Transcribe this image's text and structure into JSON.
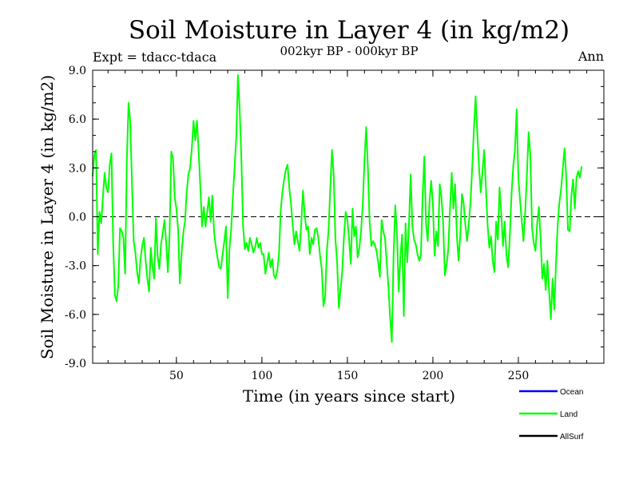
{
  "chart_data": {
    "type": "line",
    "title": "Soil Moisture in Layer 4 (in kg/m2)",
    "subtitle": "002kyr BP - 000kyr BP",
    "experiment": "Expt = tdacc-tdaca",
    "period": "Ann",
    "xlabel": "Time (in years since start)",
    "ylabel": "Soil Moisture in Layer 4 (in kg/m2)",
    "xlim": [
      1,
      300
    ],
    "ylim": [
      -9,
      9
    ],
    "xticks": [
      50,
      100,
      150,
      200,
      250
    ],
    "xtick_labels": [
      "50",
      "100",
      "150",
      "200",
      "250"
    ],
    "yticks": [
      -9,
      -6,
      -3,
      0,
      3,
      6,
      9
    ],
    "ytick_labels": [
      "-9.0",
      "-6.0",
      "-3.0",
      "0.0",
      "3.0",
      "6.0",
      "9.0"
    ],
    "zero_line": "dashed",
    "legend": [
      {
        "name": "Ocean",
        "color": "#0000ff"
      },
      {
        "name": "Land",
        "color": "#00ff00"
      },
      {
        "name": "AllSurf",
        "color": "#000000"
      }
    ],
    "series": [
      {
        "name": "Land",
        "color": "#00ff00",
        "x_start": 1,
        "x_step": 1,
        "values": [
          2.5,
          3.8,
          4.1,
          -2.3,
          0.3,
          -0.4,
          1.2,
          2.7,
          1.8,
          1.5,
          3.2,
          3.9,
          -1.6,
          -4.8,
          -5.2,
          -4.2,
          -0.7,
          -0.9,
          -1.3,
          -3.5,
          3.5,
          7.0,
          5.8,
          2.1,
          -1.5,
          -2.2,
          -3.4,
          -4.1,
          -2.6,
          -1.8,
          -1.3,
          -2.7,
          -3.8,
          -4.6,
          -1.9,
          -3.1,
          -3.8,
          -0.1,
          -2.4,
          -3.2,
          -1.7,
          -1.0,
          -0.2,
          -1.6,
          -3.4,
          -1.1,
          4.0,
          3.6,
          1.2,
          0.5,
          -0.8,
          -4.1,
          -2.3,
          -1.0,
          -0.3,
          1.5,
          2.6,
          3.0,
          4.2,
          5.9,
          4.7,
          5.9,
          4.0,
          1.8,
          -0.6,
          0.6,
          -0.6,
          0.3,
          1.2,
          -0.3,
          1.3,
          -0.9,
          -1.8,
          -2.5,
          -3.1,
          -3.2,
          -2.3,
          -1.5,
          -0.6,
          -5.0,
          -2.0,
          -0.8,
          1.2,
          3.0,
          4.9,
          8.7,
          6.6,
          3.5,
          -0.6,
          -2.0,
          -1.6,
          -2.1,
          -1.3,
          -1.7,
          -2.2,
          -1.9,
          -1.3,
          -1.9,
          -1.6,
          -2.3,
          -2.3,
          -3.5,
          -2.9,
          -2.2,
          -3.1,
          -2.6,
          -3.6,
          -3.8,
          -3.3,
          -2.3,
          0.4,
          1.5,
          2.3,
          2.9,
          3.2,
          1.8,
          0.8,
          -0.5,
          -1.7,
          -0.9,
          -1.5,
          -2.1,
          -0.4,
          1.6,
          0.2,
          -0.8,
          -0.6,
          -2.3,
          -1.3,
          -1.7,
          -0.8,
          -0.7,
          -1.3,
          -2.4,
          -3.2,
          -5.5,
          -4.9,
          -2.1,
          -0.8,
          1.8,
          4.1,
          2.5,
          -1.4,
          -2.8,
          -5.6,
          -4.5,
          -3.3,
          -1.2,
          0.3,
          -0.2,
          -1.4,
          -2.9,
          0.5,
          -1.2,
          -0.6,
          -2.5,
          -1.9,
          -0.9,
          0.8,
          3.5,
          5.5,
          3.0,
          -0.3,
          -1.8,
          -1.5,
          -1.7,
          -2.1,
          -2.8,
          -3.7,
          -0.2,
          -0.9,
          -1.3,
          -2.8,
          -4.3,
          -6.2,
          -7.7,
          -2.4,
          0.7,
          -1.0,
          -4.6,
          -2.5,
          -1.1,
          -6.1,
          -0.4,
          -2.8,
          -0.5,
          2.6,
          -0.6,
          -1.4,
          -1.7,
          -2.3,
          -2.7,
          -2.4,
          1.3,
          3.7,
          -0.5,
          -1.5,
          0.9,
          2.2,
          0.8,
          -2.4,
          -0.9,
          -1.8,
          2.0,
          1.2,
          -0.4,
          -3.6,
          -3.0,
          -2.0,
          0.5,
          2.7,
          0.5,
          2.0,
          -1.1,
          -2.7,
          -1.2,
          1.4,
          0.8,
          -0.5,
          -1.5,
          -0.4,
          0.9,
          3.0,
          5.4,
          7.4,
          5.1,
          3.0,
          1.5,
          2.8,
          4.1,
          1.8,
          -0.5,
          -1.9,
          -1.2,
          -2.7,
          -3.4,
          -0.3,
          -1.4,
          1.8,
          0.2,
          -1.8,
          -0.3,
          -2.3,
          -3.1,
          -1.2,
          1.4,
          3.1,
          4.1,
          6.6,
          2.4,
          1.0,
          -0.3,
          -1.5,
          0.3,
          2.6,
          5.2,
          3.8,
          -0.7,
          -1.6,
          -2.1,
          -0.4,
          0.6,
          -1.3,
          -3.8,
          -2.9,
          -4.5,
          -2.7,
          -4.6,
          -6.3,
          -3.8,
          -5.7,
          -2.9,
          -0.5,
          0.9,
          1.7,
          3.0,
          4.2,
          2.4,
          -0.8,
          -0.9,
          1.3,
          2.3,
          0.5,
          2.4,
          2.8,
          2.4,
          3.1
        ]
      }
    ]
  }
}
